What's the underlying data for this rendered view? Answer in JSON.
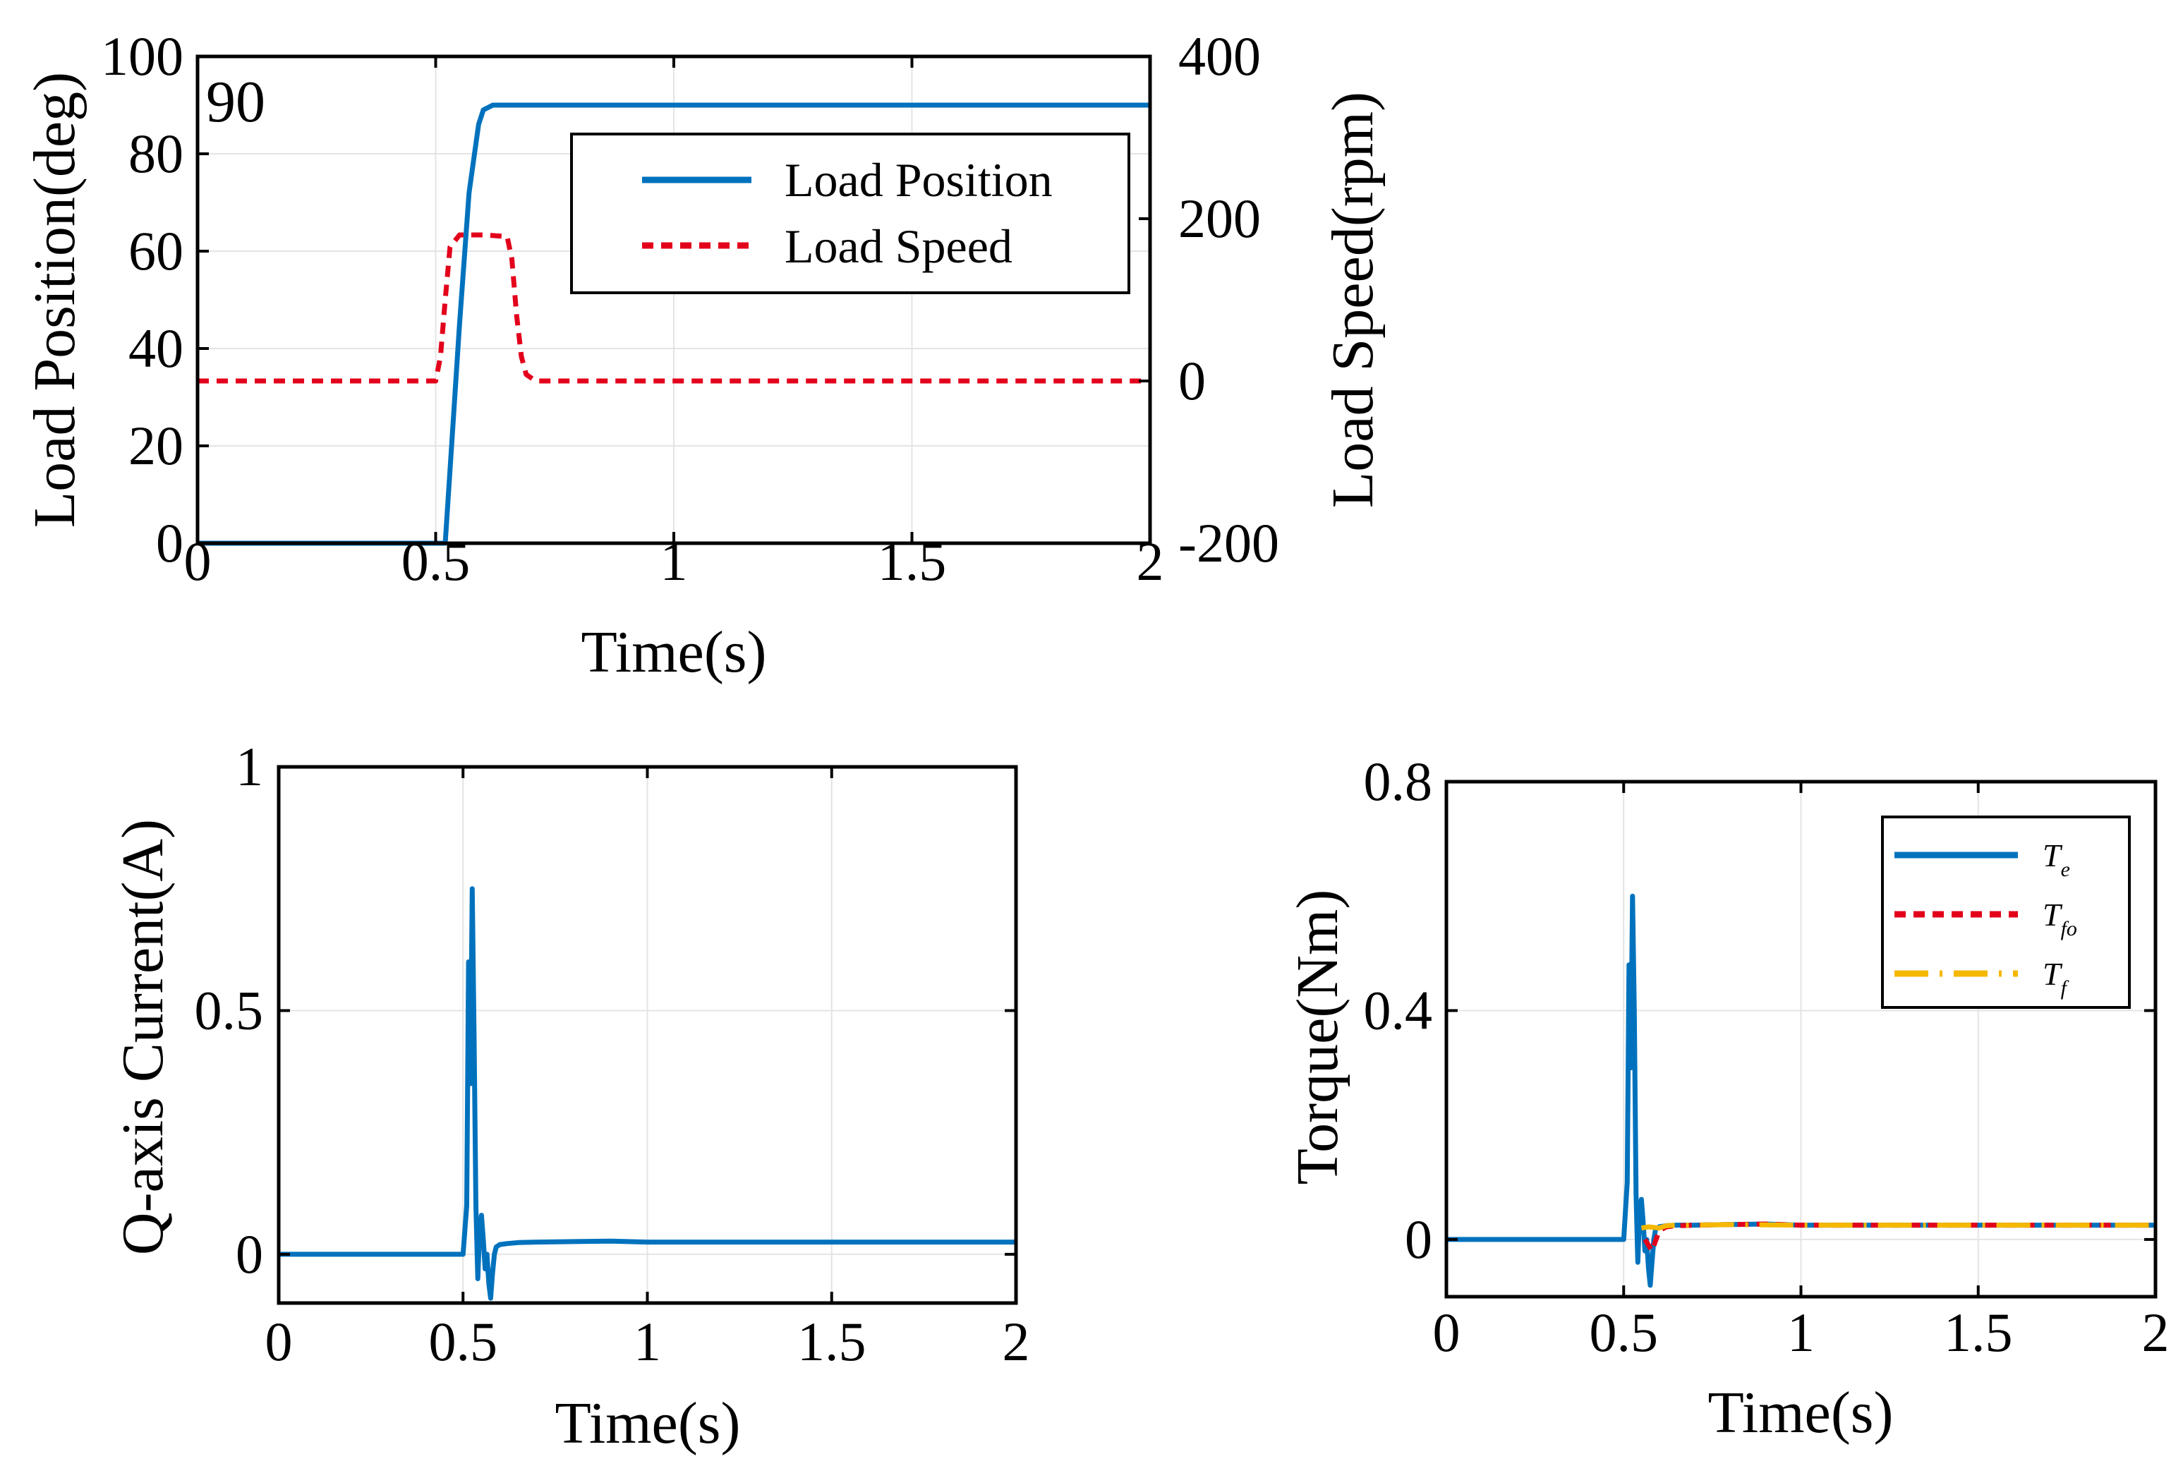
{
  "chart_data": [
    {
      "id": "pos",
      "type": "line",
      "xlabel": "Time(s)",
      "ylabel": "Load Position(deg)",
      "y2label": "Load Speed(rpm)",
      "xlim": [
        0,
        2
      ],
      "ylim": [
        0,
        100
      ],
      "y2lim": [
        -200,
        400
      ],
      "xticks": [
        0,
        0.5,
        1,
        1.5,
        2
      ],
      "xtick_labels": [
        "0",
        "0.5",
        "1",
        "1.5",
        "2"
      ],
      "yticks": [
        0,
        20,
        40,
        60,
        80,
        100
      ],
      "ytick_labels": [
        "0",
        "20",
        "40",
        "60",
        "80",
        "100"
      ],
      "y2ticks": [
        -200,
        0,
        200,
        400
      ],
      "y2tick_labels": [
        "-200",
        "0",
        "200",
        "400"
      ],
      "annotation": "90",
      "grid": true,
      "legend_position": "top-right",
      "series": [
        {
          "name": "Load Position",
          "axis": "left",
          "color": "#0072BD",
          "style": "solid",
          "x": [
            0,
            0.52,
            0.53,
            0.55,
            0.57,
            0.59,
            0.6,
            0.62,
            2
          ],
          "y": [
            0,
            0,
            15,
            45,
            72,
            86,
            89,
            90,
            90
          ]
        },
        {
          "name": "Load Speed",
          "axis": "right",
          "color": "#E3001B",
          "style": "dashed",
          "x": [
            0,
            0.5,
            0.51,
            0.52,
            0.53,
            0.55,
            0.6,
            0.65,
            0.66,
            0.67,
            0.68,
            0.69,
            0.71,
            1.0,
            2.0
          ],
          "y": [
            0,
            0,
            30,
            100,
            165,
            180,
            180,
            178,
            150,
            80,
            30,
            8,
            0,
            0,
            0
          ]
        }
      ]
    },
    {
      "id": "iq",
      "type": "line",
      "xlabel": "Time(s)",
      "ylabel": "Q-axis Current(A)",
      "xlim": [
        0,
        2
      ],
      "ylim": [
        -0.1,
        1
      ],
      "xticks": [
        0,
        0.5,
        1,
        1.5,
        2
      ],
      "xtick_labels": [
        "0",
        "0.5",
        "1",
        "1.5",
        "2"
      ],
      "yticks": [
        0,
        0.5,
        1
      ],
      "ytick_labels": [
        "0",
        "0.5",
        "1"
      ],
      "grid": true,
      "series": [
        {
          "name": "",
          "color": "#0072BD",
          "style": "solid",
          "x": [
            0,
            0.48,
            0.5,
            0.51,
            0.515,
            0.52,
            0.525,
            0.53,
            0.535,
            0.54,
            0.545,
            0.55,
            0.555,
            0.56,
            0.565,
            0.57,
            0.575,
            0.58,
            0.585,
            0.59,
            0.6,
            0.62,
            0.65,
            0.7,
            0.8,
            0.9,
            1.0,
            1.5,
            2.0
          ],
          "y": [
            0.0,
            0.0,
            0.0,
            0.1,
            0.6,
            0.35,
            0.75,
            0.45,
            0.1,
            -0.05,
            0.05,
            0.08,
            0.03,
            -0.03,
            0.0,
            -0.06,
            -0.09,
            -0.04,
            0.0,
            0.015,
            0.02,
            0.022,
            0.024,
            0.025,
            0.026,
            0.027,
            0.025,
            0.025,
            0.025
          ]
        }
      ]
    },
    {
      "id": "tq",
      "type": "line",
      "xlabel": "Time(s)",
      "ylabel": "Torque(Nm)",
      "xlim": [
        0,
        2
      ],
      "ylim": [
        -0.1,
        0.8
      ],
      "xticks": [
        0,
        0.5,
        1,
        1.5,
        2
      ],
      "xtick_labels": [
        "0",
        "0.5",
        "1",
        "1.5",
        "2"
      ],
      "yticks": [
        0,
        0.4,
        0.8
      ],
      "ytick_labels": [
        "0",
        "0.4",
        "0.8"
      ],
      "grid": true,
      "legend_position": "top-right",
      "series": [
        {
          "name": "T",
          "sub": "e",
          "color": "#0072BD",
          "style": "solid",
          "x": [
            0,
            0.48,
            0.5,
            0.51,
            0.515,
            0.52,
            0.525,
            0.53,
            0.535,
            0.54,
            0.545,
            0.55,
            0.555,
            0.56,
            0.565,
            0.57,
            0.575,
            0.58,
            0.585,
            0.59,
            0.6,
            0.62,
            0.65,
            0.7,
            0.8,
            0.9,
            1.0,
            1.5,
            2.0
          ],
          "y": [
            0.0,
            0.0,
            0.0,
            0.1,
            0.48,
            0.3,
            0.6,
            0.4,
            0.08,
            -0.04,
            0.05,
            0.07,
            0.03,
            -0.02,
            0.0,
            -0.05,
            -0.08,
            -0.04,
            0.0,
            0.018,
            0.022,
            0.024,
            0.025,
            0.025,
            0.026,
            0.027,
            0.025,
            0.025,
            0.025
          ]
        },
        {
          "name": "T",
          "sub": "fo",
          "color": "#E3001B",
          "style": "dashed",
          "x": [
            0.56,
            0.58,
            0.6,
            0.62,
            0.65,
            0.7,
            0.8,
            0.9,
            1.0,
            1.5,
            2.0
          ],
          "y": [
            0.0,
            -0.02,
            0.015,
            0.022,
            0.024,
            0.025,
            0.026,
            0.027,
            0.025,
            0.025,
            0.025
          ]
        },
        {
          "name": "T",
          "sub": "f",
          "color": "#F5B800",
          "style": "dashdot",
          "x": [
            0.55,
            0.57,
            0.6,
            0.62,
            0.65,
            0.7,
            0.8,
            1.0,
            1.5,
            2.0
          ],
          "y": [
            0.02,
            0.022,
            0.02,
            0.024,
            0.025,
            0.025,
            0.026,
            0.025,
            0.025,
            0.025
          ]
        }
      ]
    }
  ]
}
